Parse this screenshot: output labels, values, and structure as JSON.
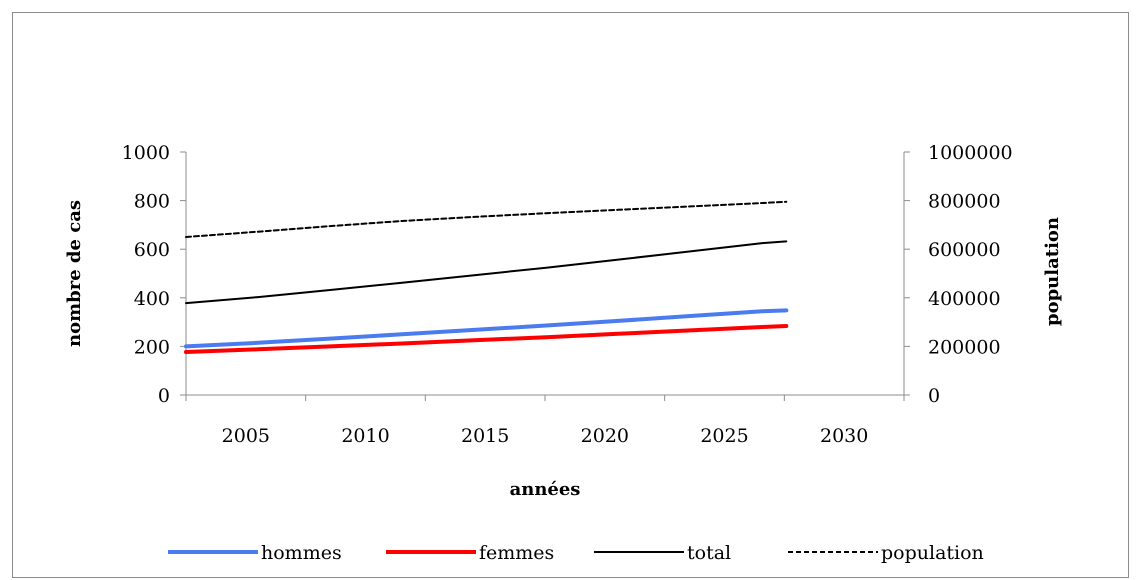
{
  "chart_data": {
    "type": "line",
    "title": "",
    "xlabel": "années",
    "ylabel": "nombre de cas",
    "y2label": "population",
    "categories": [
      "2005",
      "2010",
      "2015",
      "2020",
      "2025",
      "2030"
    ],
    "x": [
      2005,
      2008,
      2011,
      2014,
      2017,
      2020,
      2023,
      2026,
      2029,
      2030
    ],
    "ylim": [
      0,
      1000
    ],
    "y2lim": [
      0,
      1000000
    ],
    "yticks": [
      0,
      200,
      400,
      600,
      800,
      1000
    ],
    "y2ticks": [
      0,
      200000,
      400000,
      600000,
      800000,
      1000000
    ],
    "grid": false,
    "legend_position": "bottom",
    "series": [
      {
        "name": "hommes",
        "axis": "left",
        "color": "#4a7cf0",
        "style": "solid-thick",
        "values": [
          200,
          215,
          232,
          250,
          268,
          286,
          305,
          325,
          345,
          348
        ]
      },
      {
        "name": "femmes",
        "axis": "left",
        "color": "#ff0000",
        "style": "solid-thick",
        "values": [
          177,
          188,
          200,
          212,
          225,
          238,
          252,
          266,
          280,
          284
        ]
      },
      {
        "name": "total",
        "axis": "left",
        "color": "#000000",
        "style": "solid",
        "values": [
          378,
          403,
          432,
          462,
          493,
          524,
          557,
          591,
          625,
          632
        ]
      },
      {
        "name": "population",
        "axis": "right",
        "color": "#000000",
        "style": "dashed",
        "values": [
          650000,
          672000,
          695000,
          716000,
          733000,
          748000,
          762000,
          776000,
          790000,
          795000
        ]
      }
    ]
  }
}
